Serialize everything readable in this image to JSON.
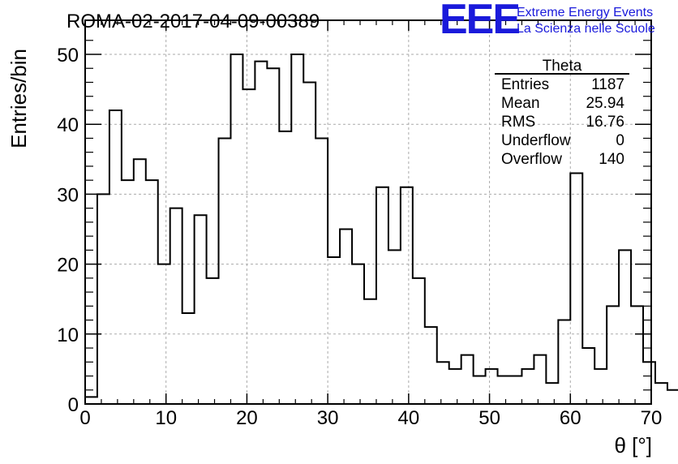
{
  "title": "ROMA-02-2017-04-09-00389",
  "logo": {
    "mark": "EEE",
    "line1": "Extreme Energy Events",
    "line2": "La Scienza nelle Scuole",
    "color": "#1a1adb"
  },
  "stats_box": {
    "title": "Theta",
    "rows": [
      {
        "label": "Entries",
        "value": "1187"
      },
      {
        "label": "Mean",
        "value": "25.94"
      },
      {
        "label": "RMS",
        "value": "16.76"
      },
      {
        "label": "Underflow",
        "value": "0"
      },
      {
        "label": "Overflow",
        "value": "140"
      }
    ]
  },
  "chart_data": {
    "type": "bar",
    "histogram": true,
    "title": "ROMA-02-2017-04-09-00389",
    "xlabel": "θ [°]",
    "ylabel": "Entries/bin",
    "xlim": [
      0,
      70
    ],
    "ylim": [
      0,
      52
    ],
    "bin_width": 1.5,
    "xticks": [
      0,
      10,
      20,
      30,
      40,
      50,
      60,
      70
    ],
    "yticks": [
      0,
      10,
      20,
      30,
      40,
      50
    ],
    "grid": true,
    "legend": "none",
    "values": [
      1,
      30,
      42,
      32,
      35,
      32,
      20,
      28,
      13,
      27,
      18,
      38,
      50,
      45,
      49,
      48,
      39,
      50,
      46,
      38,
      21,
      25,
      20,
      15,
      31,
      22,
      31,
      18,
      11,
      6,
      5,
      7,
      4,
      5,
      4,
      4,
      5,
      7,
      3,
      12,
      33,
      8,
      5,
      14,
      22,
      14,
      6,
      3,
      2,
      3
    ]
  }
}
